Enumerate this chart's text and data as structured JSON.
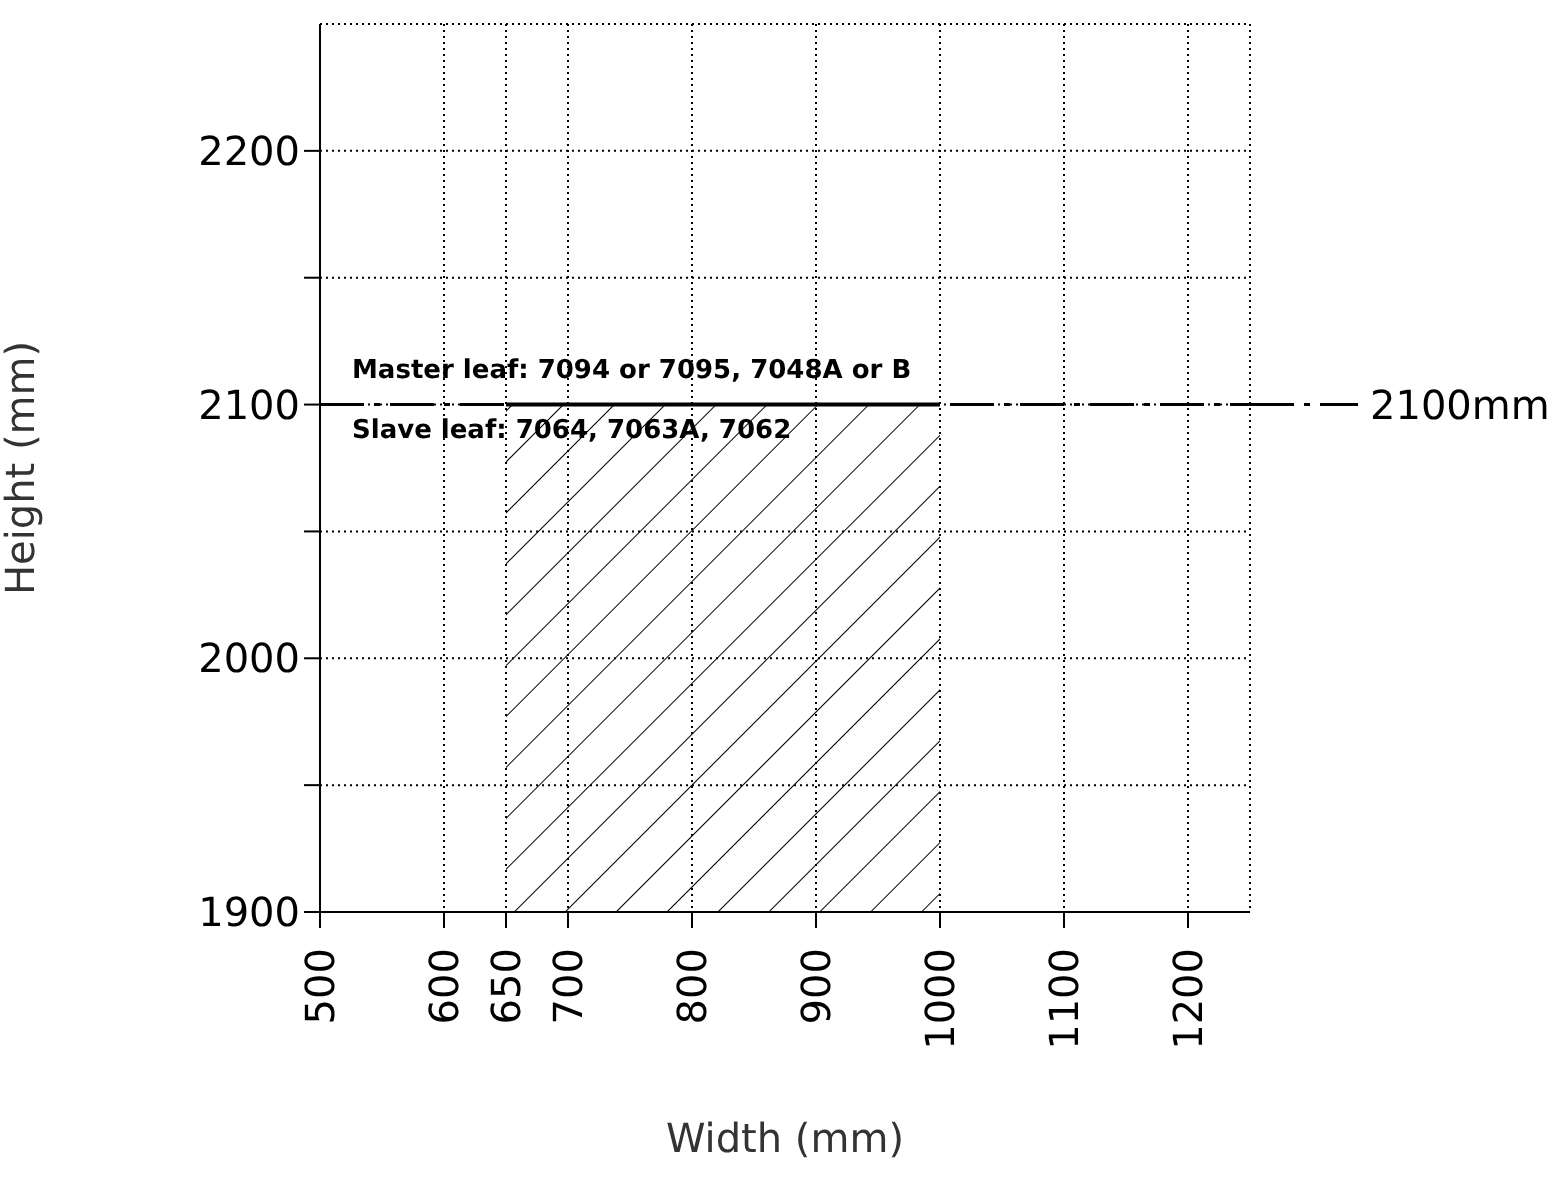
{
  "chart_data": {
    "type": "area",
    "xlabel": "Width (mm)",
    "ylabel": "Height (mm)",
    "x": [
      650,
      1000
    ],
    "series": [
      {
        "color": "#000000",
        "values": [
          2100,
          2100
        ]
      }
    ],
    "xlim": [
      500,
      1250
    ],
    "xticks": [
      500,
      600,
      650,
      700,
      800,
      900,
      1000,
      1100,
      1200
    ],
    "ylim": [
      1900,
      2250
    ],
    "yticks": [
      1900,
      {
        "value": 1950,
        "label": null
      },
      2000,
      {
        "value": 2050,
        "label": null
      },
      2100,
      {
        "value": 2150,
        "label": null
      },
      2200
    ],
    "ref_lines": [
      {
        "axis": "y",
        "value": 2100,
        "label": "2100mm",
        "color": "#000000",
        "line_style": "dashdot"
      }
    ],
    "annotations": [
      "Master leaf:  7094 or 7095, 7048A or B",
      "Slave leaf:  7064, 7063A, 7062"
    ],
    "grid": true
  }
}
